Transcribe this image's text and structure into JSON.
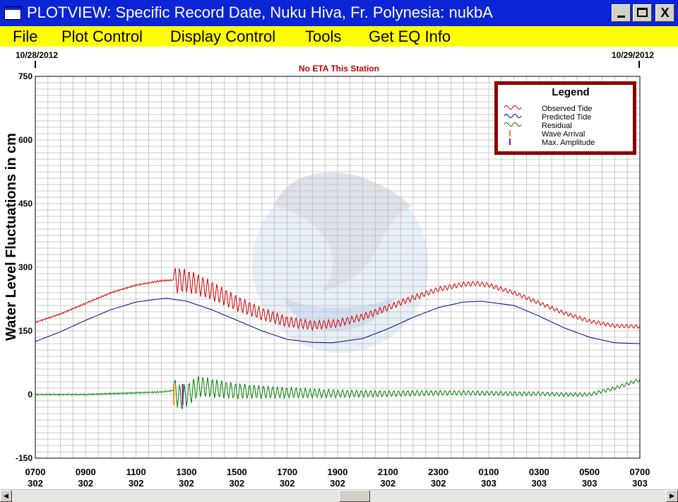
{
  "window": {
    "title": "PLOTVIEW: Specific Record Date, Nuku Hiva, Fr. Polynesia: nukbA",
    "minimize_label": "_",
    "close_label": "X"
  },
  "menu": {
    "items": [
      "File",
      "Plot Control",
      "Display Control",
      "Tools",
      "Get EQ Info"
    ]
  },
  "colors": {
    "titlebar": "#0b24d6",
    "menubar": "#ffff00",
    "observed": "#d40000",
    "predicted": "#000096",
    "residual": "#008000",
    "wave_arrival": "#ff8000",
    "max_amplitude": "#9000b0",
    "legend_border": "#8b0000",
    "eta_text": "#c00000"
  },
  "plot": {
    "start_date": "10/28/2012",
    "end_date": "10/29/2012",
    "eta_note": "No ETA This Station",
    "ylabel": "Water Level Fluctuations in cm",
    "legend": {
      "title": "Legend",
      "items": [
        "Observed Tide",
        "Predicted Tide",
        "Residual",
        "Wave Arrival",
        "Max. Amplitude"
      ]
    }
  },
  "chart_data": {
    "type": "line",
    "ylabel": "Water Level Fluctuations in cm",
    "ylim": [
      -150,
      750
    ],
    "yticks": [
      -150,
      0,
      150,
      300,
      450,
      600,
      750
    ],
    "xlim": [
      0,
      24
    ],
    "xticks": [
      {
        "time": "0700",
        "day": "302"
      },
      {
        "time": "0900",
        "day": "302"
      },
      {
        "time": "1100",
        "day": "302"
      },
      {
        "time": "1300",
        "day": "302"
      },
      {
        "time": "1500",
        "day": "302"
      },
      {
        "time": "1700",
        "day": "302"
      },
      {
        "time": "1900",
        "day": "302"
      },
      {
        "time": "2100",
        "day": "302"
      },
      {
        "time": "2300",
        "day": "302"
      },
      {
        "time": "0100",
        "day": "303"
      },
      {
        "time": "0300",
        "day": "303"
      },
      {
        "time": "0500",
        "day": "303"
      },
      {
        "time": "0700",
        "day": "303"
      }
    ],
    "grid": true,
    "legend_position": "top-right",
    "series": [
      {
        "name": "Observed Tide",
        "x": [
          0,
          1,
          2,
          3,
          4,
          5,
          5.5,
          6,
          6.5,
          7,
          8,
          9,
          10,
          11,
          12,
          13,
          14,
          15,
          16,
          17,
          17.5,
          18,
          19,
          20,
          21,
          22,
          23,
          24
        ],
        "y": [
          170,
          190,
          215,
          240,
          258,
          268,
          270,
          268,
          258,
          245,
          215,
          190,
          172,
          163,
          168,
          183,
          205,
          228,
          248,
          260,
          262,
          258,
          240,
          216,
          192,
          173,
          162,
          160
        ]
      },
      {
        "name": "Predicted Tide",
        "x": [
          0,
          1,
          2,
          3,
          4,
          5,
          5.2,
          6,
          7,
          8,
          9,
          10,
          11,
          11.8,
          13,
          14,
          15,
          16,
          17,
          17.7,
          19,
          20,
          21,
          22,
          23,
          24
        ],
        "y": [
          125,
          148,
          175,
          200,
          218,
          226,
          227,
          220,
          200,
          175,
          150,
          130,
          123,
          122,
          132,
          155,
          182,
          205,
          218,
          220,
          210,
          185,
          157,
          135,
          122,
          120
        ]
      },
      {
        "name": "Residual",
        "x": [
          0,
          1,
          2,
          3,
          4,
          5,
          5.3,
          5.5,
          5.8,
          6.5,
          7,
          8,
          9,
          10,
          11,
          12,
          13,
          14,
          15,
          16,
          17,
          18,
          19,
          20,
          21,
          22,
          23,
          24
        ],
        "y": [
          0,
          0,
          0,
          2,
          4,
          6,
          8,
          10,
          -10,
          20,
          15,
          8,
          6,
          4,
          3,
          2,
          2,
          2,
          3,
          4,
          4,
          3,
          2,
          2,
          0,
          0,
          15,
          35
        ]
      }
    ],
    "events": [
      {
        "name": "Wave Arrival",
        "x": 5.5
      },
      {
        "name": "Max. Amplitude",
        "x": 5.85
      }
    ]
  }
}
